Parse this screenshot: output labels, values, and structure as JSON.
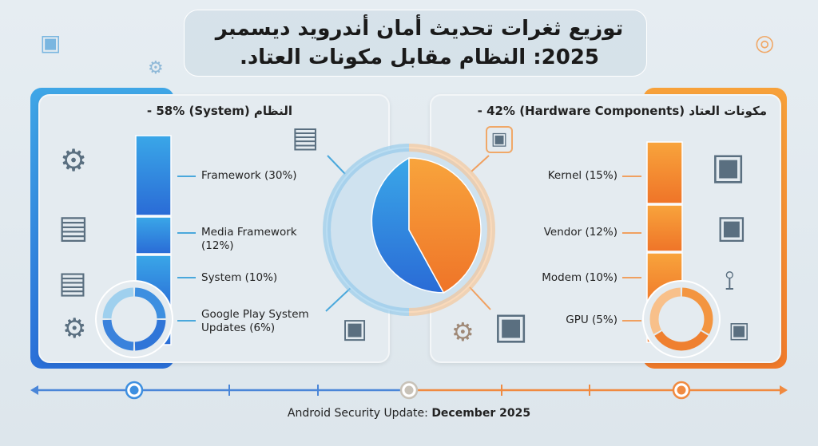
{
  "title": "توزيع ثغرات تحديث أمان أندرويد ديسمبر 2025: النظام مقابل مكونات العتاد.",
  "system": {
    "heading": "- 58% (System) النظام",
    "items": [
      {
        "label": "Framework (30%)",
        "value": 30
      },
      {
        "label": "Media Framework (12%)",
        "value": 12
      },
      {
        "label": "System (10%)",
        "value": 10
      },
      {
        "label": "Google Play System Updates (6%)",
        "value": 6
      }
    ]
  },
  "hardware": {
    "heading": "مكونات العتاد (Hardware Components) 42% -",
    "items": [
      {
        "label": "Kernel (15%)",
        "value": 15
      },
      {
        "label": "Vendor (12%)",
        "value": 12
      },
      {
        "label": "Modem (10%)",
        "value": 10
      },
      {
        "label": "GPU (5%)",
        "value": 5
      }
    ]
  },
  "footer": {
    "prefix": "Android Security Update: ",
    "date": "December 2025"
  },
  "colors": {
    "system": "#2f7fdc",
    "hardware": "#f58a33"
  },
  "chart_data": {
    "type": "pie",
    "title": "توزيع ثغرات تحديث أمان أندرويد ديسمبر 2025: النظام مقابل مكونات العتاد.",
    "categories": [
      "System",
      "Hardware Components"
    ],
    "values": [
      58,
      42
    ],
    "breakdown": {
      "System": {
        "Framework": 30,
        "Media Framework": 12,
        "System": 10,
        "Google Play System Updates": 6
      },
      "Hardware Components": {
        "Kernel": 15,
        "Vendor": 12,
        "Modem": 10,
        "GPU": 5
      }
    }
  }
}
